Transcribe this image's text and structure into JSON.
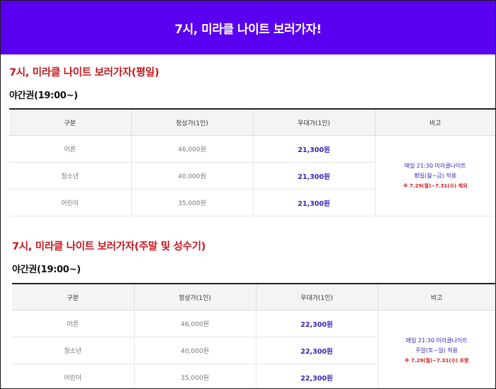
{
  "banner": {
    "title": "7시, 미라클 나이트 보러가자!"
  },
  "sections": [
    {
      "title": "7시, 미라클 나이트 보러가자(평일)",
      "subtitle": "야간권(19:00~)",
      "headers": [
        "구분",
        "정상가(1인)",
        "우대가(1인)",
        "비고"
      ],
      "rows": [
        {
          "type": "어른",
          "regular": "46,000원",
          "sale": "21,300원"
        },
        {
          "type": "청소년",
          "regular": "40,000원",
          "sale": "21,300원"
        },
        {
          "type": "어린이",
          "regular": "35,000원",
          "sale": "21,300원"
        }
      ],
      "note": {
        "line1": "매일 21:30 미라클나이트",
        "line2": "평일(월~금) 적용",
        "line3": "※ 7.29(월)~7.31(수) 제외"
      }
    },
    {
      "title": "7시, 미라클 나이트 보러가자(주말 및 성수기)",
      "subtitle": "야간권(19:00~)",
      "headers": [
        "구분",
        "정상가(1인)",
        "우대가(1인)",
        "비고"
      ],
      "rows": [
        {
          "type": "어른",
          "regular": "46,000원",
          "sale": "22,300원"
        },
        {
          "type": "청소년",
          "regular": "40,000원",
          "sale": "22,300원"
        },
        {
          "type": "어린이",
          "regular": "35,000원",
          "sale": "22,300원"
        }
      ],
      "note": {
        "line1": "매일 21:30 미라클나이트",
        "line2": "주말(토~일) 적용",
        "line3": "※ 7.29(월)~7.31(수) 포함"
      }
    }
  ]
}
